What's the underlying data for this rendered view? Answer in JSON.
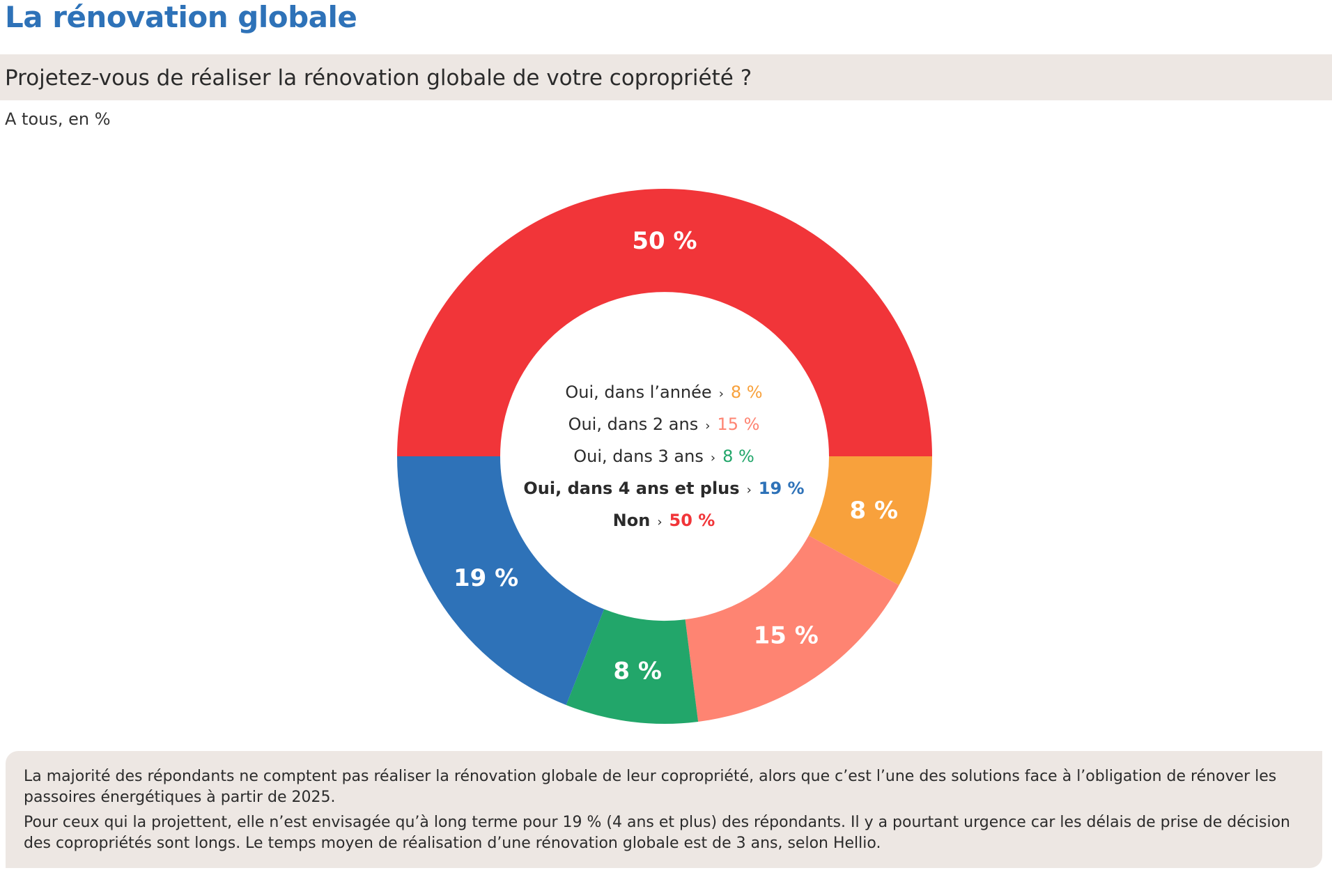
{
  "header": {
    "title": "La rénovation globale",
    "question": "Projetez-vous de réaliser la rénovation globale de votre copropriété ?",
    "subtitle": "A tous, en %"
  },
  "chart_data": {
    "type": "pie",
    "variant": "donut",
    "unit": "%",
    "slices": [
      {
        "label": "Oui, dans l’année",
        "value": 8,
        "display": "8 %",
        "color": "#f8a13c",
        "legend_bold": false
      },
      {
        "label": "Oui, dans 2 ans",
        "value": 15,
        "display": "15 %",
        "color": "#fe8472",
        "legend_bold": false
      },
      {
        "label": "Oui, dans 3 ans",
        "value": 8,
        "display": "8 %",
        "color": "#22a66a",
        "legend_bold": false
      },
      {
        "label": "Oui, dans 4 ans et plus",
        "value": 19,
        "display": "19 %",
        "color": "#2e72b8",
        "legend_bold": true
      },
      {
        "label": "Non",
        "value": 50,
        "display": "50 %",
        "color": "#f13539",
        "legend_bold": true
      }
    ],
    "legend_placement": "center",
    "legend_arrow": "›"
  },
  "notes": {
    "paragraph1": " La majorité des répondants ne comptent pas réaliser la rénovation globale de leur  copropriété, alors que c’est l’une des solutions face à l’obligation de rénover les passoires énergétiques à partir de 2025.",
    "paragraph2": "Pour ceux qui la projettent, elle n’est envisagée qu’à long terme pour 19 % (4 ans et plus) des répondants. Il y a pourtant urgence car les délais de prise de décision des copropriétés sont longs. Le temps moyen de réalisation d’une rénovation globale est de 3 ans, selon Hellio."
  }
}
